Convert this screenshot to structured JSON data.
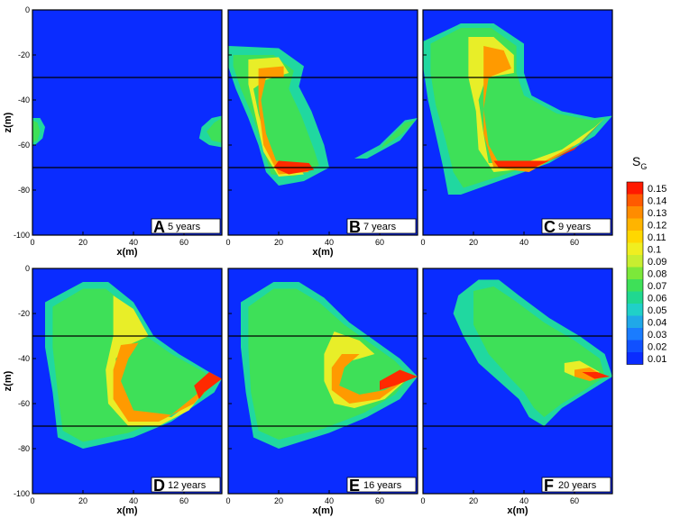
{
  "chart_data": [
    {
      "panel": "A",
      "time_label": "5 years",
      "type": "heatmap",
      "xlabel": "x(m)",
      "ylabel": "z(m)",
      "xticks": [
        "0",
        "20",
        "40",
        "60"
      ],
      "yticks": [
        "0",
        "-20",
        "-40",
        "-60",
        "-80",
        "-100"
      ],
      "xlim": [
        0,
        75
      ],
      "ylim": [
        -100,
        0
      ],
      "horizontal_lines_z": [
        -30,
        -70
      ],
      "plume_peak_sg": 0.09
    },
    {
      "panel": "B",
      "time_label": "7 years",
      "type": "heatmap",
      "xlabel": "x(m)",
      "ylabel": "",
      "xticks": [
        "0",
        "20",
        "40",
        "60"
      ],
      "yticks": [],
      "xlim": [
        0,
        75
      ],
      "ylim": [
        -100,
        0
      ],
      "horizontal_lines_z": [
        -30,
        -70
      ],
      "plume_peak_sg": 0.15
    },
    {
      "panel": "C",
      "time_label": "9 years",
      "type": "heatmap",
      "xlabel": "",
      "ylabel": "",
      "xticks": [
        "0",
        "20",
        "40",
        "60"
      ],
      "yticks": [],
      "xlim": [
        0,
        75
      ],
      "ylim": [
        -100,
        0
      ],
      "horizontal_lines_z": [
        -30,
        -70
      ],
      "plume_peak_sg": 0.15
    },
    {
      "panel": "D",
      "time_label": "12 years",
      "type": "heatmap",
      "xlabel": "x(m)",
      "ylabel": "z(m)",
      "xticks": [
        "0",
        "20",
        "40",
        "60"
      ],
      "yticks": [
        "0",
        "-20",
        "-40",
        "-60",
        "-80",
        "-100"
      ],
      "xlim": [
        0,
        75
      ],
      "ylim": [
        -100,
        0
      ],
      "horizontal_lines_z": [
        -30,
        -70
      ],
      "plume_peak_sg": 0.15
    },
    {
      "panel": "E",
      "time_label": "16 years",
      "type": "heatmap",
      "xlabel": "x(m)",
      "ylabel": "",
      "xticks": [
        "0",
        "20",
        "40",
        "60"
      ],
      "yticks": [],
      "xlim": [
        0,
        75
      ],
      "ylim": [
        -100,
        0
      ],
      "horizontal_lines_z": [
        -30,
        -70
      ],
      "plume_peak_sg": 0.15
    },
    {
      "panel": "F",
      "time_label": "20 years",
      "type": "heatmap",
      "xlabel": "x(m)",
      "ylabel": "",
      "xticks": [
        "0",
        "20",
        "40",
        "60"
      ],
      "yticks": [],
      "xlim": [
        0,
        75
      ],
      "ylim": [
        -100,
        0
      ],
      "horizontal_lines_z": [
        -30,
        -70
      ],
      "plume_peak_sg": 0.15
    }
  ],
  "colorbar": {
    "title": "S",
    "title_subscript": "G",
    "levels": [
      "0.15",
      "0.14",
      "0.13",
      "0.12",
      "0.11",
      "0.1",
      "0.09",
      "0.08",
      "0.07",
      "0.06",
      "0.05",
      "0.04",
      "0.03",
      "0.02",
      "0.01"
    ],
    "colors": [
      "#ff1a00",
      "#ff5a00",
      "#ff8c00",
      "#ffb400",
      "#ffd700",
      "#f0ee20",
      "#c8ee30",
      "#7ce83a",
      "#3ee058",
      "#20d890",
      "#20d0c8",
      "#20a8e8",
      "#1a7cff",
      "#1050ff",
      "#0a2cff"
    ]
  },
  "colors": {
    "background_field": "#0a2cff",
    "horizon_line": "#000000"
  }
}
